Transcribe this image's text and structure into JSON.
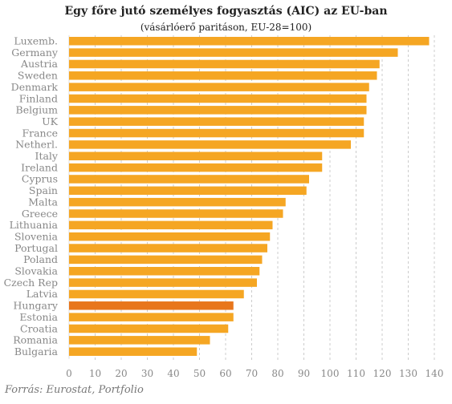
{
  "chart_data": {
    "type": "bar",
    "orientation": "horizontal",
    "title": "Egy főre jutó személyes fogyasztás (AIC) az EU-ban",
    "subtitle": "(vásárlóerő paritáson, EU-28=100)",
    "categories": [
      "Luxemb.",
      "Germany",
      "Austria",
      "Sweden",
      "Denmark",
      "Finland",
      "Belgium",
      "UK",
      "France",
      "Netherl.",
      "Italy",
      "Ireland",
      "Cyprus",
      "Spain",
      "Malta",
      "Greece",
      "Lithuania",
      "Slovenia",
      "Portugal",
      "Poland",
      "Slovakia",
      "Czech Rep",
      "Latvia",
      "Hungary",
      "Estonia",
      "Croatia",
      "Romania",
      "Bulgaria"
    ],
    "values": [
      138,
      126,
      119,
      118,
      115,
      114,
      114,
      113,
      113,
      108,
      97,
      97,
      92,
      91,
      83,
      82,
      78,
      77,
      76,
      74,
      73,
      72,
      67,
      63,
      63,
      61,
      54,
      49
    ],
    "highlight": "Hungary",
    "xlim": [
      0,
      140
    ],
    "xticks": [
      0,
      10,
      20,
      30,
      40,
      50,
      60,
      70,
      80,
      90,
      100,
      110,
      120,
      130,
      140
    ],
    "grid": "vertical dashed",
    "bar_color": "#f5a623",
    "highlight_color": "#e8761c",
    "source": "Forrás: Eurostat, Portfolio"
  }
}
